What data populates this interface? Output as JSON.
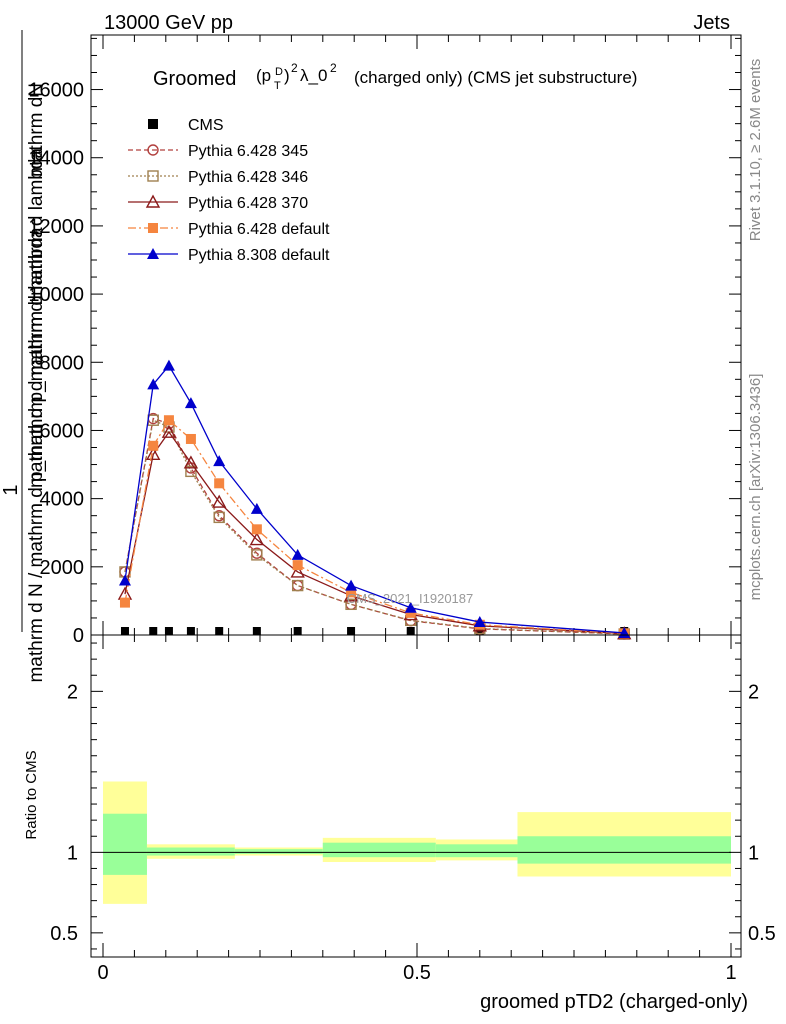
{
  "header": {
    "left": "13000 GeV pp",
    "right": "Jets"
  },
  "side_labels": {
    "rivet": "Rivet 3.1.10, ≥ 2.6M events",
    "mcplots": "mcplots.cern.ch [arXiv:1306.3436]"
  },
  "chart_data": [
    {
      "type": "line",
      "title_main": "Groomed",
      "title_rest": "(charged only) (CMS jet substructure)",
      "ylabel_top": "1",
      "ylabel_num": "mathrm dN",
      "ylabel_den": "mathrm d p_mathrm d mathrm d lambda",
      "ylabel_overlay": "mathrm d N / mathrm d p_mathrm d mathrm d lambda",
      "watermark": "CMS_2021_I1920187",
      "xlim": [
        0,
        1
      ],
      "ylim": [
        0,
        17600
      ],
      "yticks": [
        0,
        2000,
        4000,
        6000,
        8000,
        10000,
        12000,
        14000,
        16000
      ],
      "ytick_labels": [
        "0",
        "2000",
        "4000",
        "6000",
        "8000",
        "10000",
        "12000",
        "14000",
        "16000"
      ],
      "x": [
        0.035,
        0.08,
        0.105,
        0.14,
        0.185,
        0.245,
        0.31,
        0.395,
        0.49,
        0.6,
        0.83
      ],
      "series": [
        {
          "name": "CMS",
          "color": "#000000",
          "marker": "square-filled",
          "dash": "",
          "values": [
            7,
            8,
            8,
            7,
            6,
            5,
            4,
            3,
            2,
            1,
            0.2
          ]
        },
        {
          "name": "Pythia 6.428 345",
          "color": "#b2413f",
          "marker": "circle-open",
          "dash": "5,3",
          "values": [
            1850,
            6350,
            6200,
            4900,
            3500,
            2400,
            1450,
            900,
            420,
            180,
            30
          ]
        },
        {
          "name": "Pythia 6.428 346",
          "color": "#a0804f",
          "marker": "square-open",
          "dash": "2,2",
          "values": [
            1850,
            6300,
            6100,
            4800,
            3450,
            2350,
            1450,
            900,
            430,
            190,
            30
          ]
        },
        {
          "name": "Pythia 6.428 370",
          "color": "#8b1a1a",
          "marker": "triangle-open",
          "dash": "",
          "values": [
            1200,
            5300,
            5950,
            5050,
            3900,
            2800,
            1850,
            1150,
            600,
            270,
            40
          ]
        },
        {
          "name": "Pythia 6.428 default",
          "color": "#f5853f",
          "marker": "square-filled",
          "dash": "8,3,2,3",
          "values": [
            950,
            5550,
            6300,
            5750,
            4450,
            3100,
            2050,
            1250,
            650,
            300,
            45
          ]
        },
        {
          "name": "Pythia 8.308 default",
          "color": "#0000cc",
          "marker": "triangle-filled",
          "dash": "",
          "values": [
            1600,
            7350,
            7900,
            6800,
            5100,
            3700,
            2350,
            1450,
            800,
            380,
            60
          ]
        }
      ]
    },
    {
      "type": "area",
      "ylabel": "Ratio to CMS",
      "xlabel": "groomed pTD2 (charged-only)",
      "xlim": [
        0,
        1
      ],
      "ylim": [
        0.35,
        2.35
      ],
      "yticks": [
        0.5,
        1,
        2
      ],
      "ytick_labels": [
        "0.5",
        "1",
        "2"
      ],
      "xticks": [
        0,
        0.5,
        1
      ],
      "xtick_labels": [
        "0",
        "0.5",
        "1"
      ],
      "bands": [
        {
          "x0": 0.0,
          "x1": 0.07,
          "outer": [
            0.68,
            1.44
          ],
          "inner": [
            0.86,
            1.24
          ]
        },
        {
          "x0": 0.07,
          "x1": 0.21,
          "outer": [
            0.96,
            1.05
          ],
          "inner": [
            0.98,
            1.03
          ]
        },
        {
          "x0": 0.21,
          "x1": 0.35,
          "outer": [
            0.98,
            1.03
          ],
          "inner": [
            0.99,
            1.02
          ]
        },
        {
          "x0": 0.35,
          "x1": 0.53,
          "outer": [
            0.94,
            1.09
          ],
          "inner": [
            0.97,
            1.06
          ]
        },
        {
          "x0": 0.53,
          "x1": 0.66,
          "outer": [
            0.95,
            1.08
          ],
          "inner": [
            0.97,
            1.05
          ]
        },
        {
          "x0": 0.66,
          "x1": 1.0,
          "outer": [
            0.85,
            1.25
          ],
          "inner": [
            0.93,
            1.1
          ]
        }
      ],
      "band_colors": {
        "outer": "#ffff99",
        "inner": "#99ff99"
      }
    }
  ]
}
